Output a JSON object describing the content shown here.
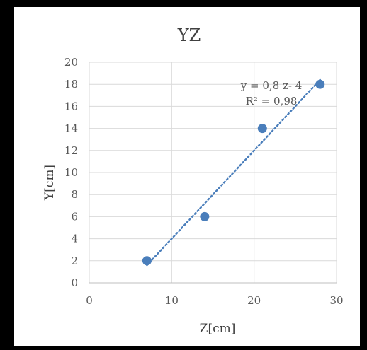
{
  "chart_data": {
    "type": "scatter",
    "title": "YZ",
    "xlabel": "Z[cm]",
    "ylabel": "Y[cm]",
    "xlim": [
      0,
      30
    ],
    "ylim": [
      0,
      20
    ],
    "x_ticks": [
      0,
      10,
      20,
      30
    ],
    "y_ticks": [
      0,
      2,
      4,
      6,
      8,
      10,
      12,
      14,
      16,
      18,
      20
    ],
    "grid": true,
    "points": [
      {
        "x": 7,
        "y": 2
      },
      {
        "x": 14,
        "y": 6
      },
      {
        "x": 21,
        "y": 14
      },
      {
        "x": 28,
        "y": 18
      }
    ],
    "trendline": {
      "type": "linear",
      "slope": 0.8,
      "intercept": -4,
      "equation": "y = 0,8 z- 4",
      "r2_label": "R² = 0,98",
      "x_range": [
        7,
        28
      ]
    },
    "colors": {
      "marker": "#4a7ebb",
      "trendline": "#4a7ebb",
      "grid": "#d9d9d9"
    }
  }
}
